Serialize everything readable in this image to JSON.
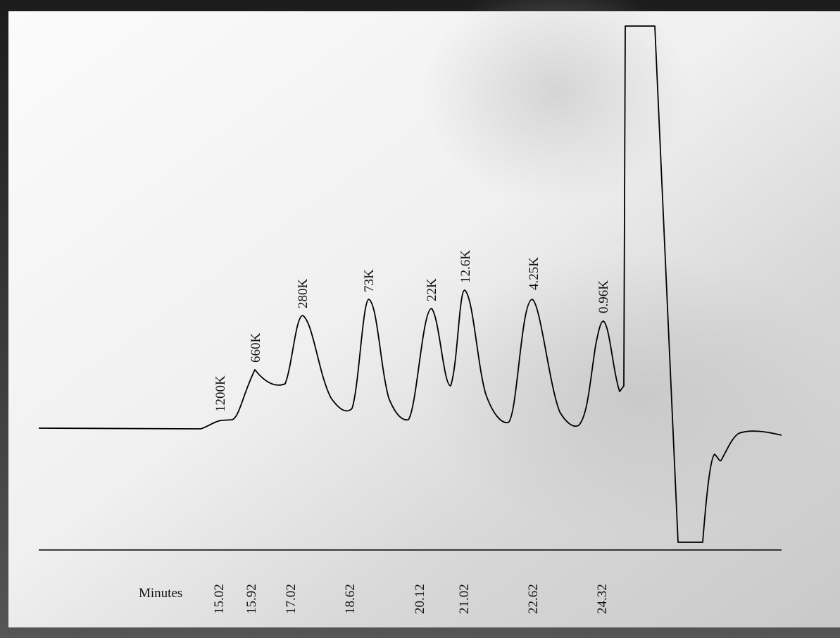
{
  "axis_label": "Minutes",
  "time_labels": [
    "15.02",
    "15.92",
    "17.02",
    "18.62",
    "20.12",
    "21.02",
    "22.62",
    "24.32"
  ],
  "peak_labels": [
    "1200K",
    "660K",
    "280K",
    "73K",
    "22K",
    "12.6K",
    "4.25K",
    "0.96K"
  ]
}
